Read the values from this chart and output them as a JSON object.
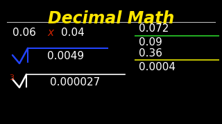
{
  "title": "Decimal Math",
  "title_color": "#FFE600",
  "title_underline_color": "#BBBBBB",
  "bg_color": "#000000",
  "text_color": "#FFFFFF",
  "multiply_left": "0.06",
  "multiply_x": "x",
  "multiply_x_color": "#CC2200",
  "multiply_right": "0.04",
  "sqrt_radicand": "0.0049",
  "sqrt_color": "#2244FF",
  "cbrt_index": "3",
  "cbrt_index_color": "#CC2200",
  "cbrt_radicand": "0.000027",
  "cbrt_color": "#FFFFFF",
  "div1_num": "0.072",
  "div1_line_color": "#22AA22",
  "div1_den": "0.09",
  "div2_num": "0.36",
  "div2_line_color": "#BBBB00",
  "div2_den": "0.0004",
  "font_size_title": 17,
  "font_size_body": 11
}
